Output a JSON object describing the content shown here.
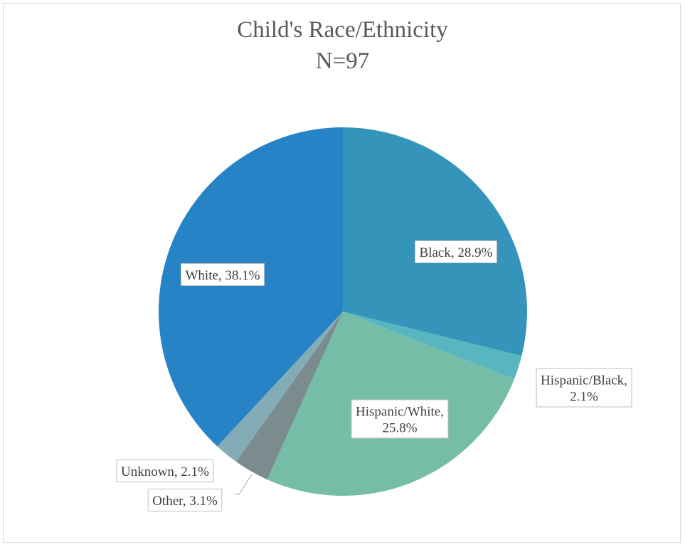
{
  "chart_data": {
    "type": "pie",
    "title": "Child's Race/Ethnicity",
    "subtitle": "N=97",
    "slices": [
      {
        "label": "Black",
        "value": 28.9,
        "display": "Black, 28.9%",
        "lines": [
          "Black, 28.9%"
        ],
        "color": "#3494BA"
      },
      {
        "label": "Hispanic/Black",
        "value": 2.1,
        "display": "Hispanic/Black, 2.1%",
        "lines": [
          "Hispanic/Black,",
          "2.1%"
        ],
        "color": "#58B6C0"
      },
      {
        "label": "Hispanic/White",
        "value": 25.8,
        "display": "Hispanic/White, 25.8%",
        "lines": [
          "Hispanic/White,",
          "25.8%"
        ],
        "color": "#75BDA7"
      },
      {
        "label": "Other",
        "value": 3.1,
        "display": "Other, 3.1%",
        "lines": [
          "Other, 3.1%"
        ],
        "color": "#7A8C8E"
      },
      {
        "label": "Unknown",
        "value": 2.1,
        "display": "Unknown, 2.1%",
        "lines": [
          "Unknown, 2.1%"
        ],
        "color": "#84ACB6"
      },
      {
        "label": "White",
        "value": 38.1,
        "display": "White, 38.1%",
        "lines": [
          "White, 38.1%"
        ],
        "color": "#2683C6"
      }
    ],
    "legend": "none",
    "data_labels": "category, percentage"
  }
}
